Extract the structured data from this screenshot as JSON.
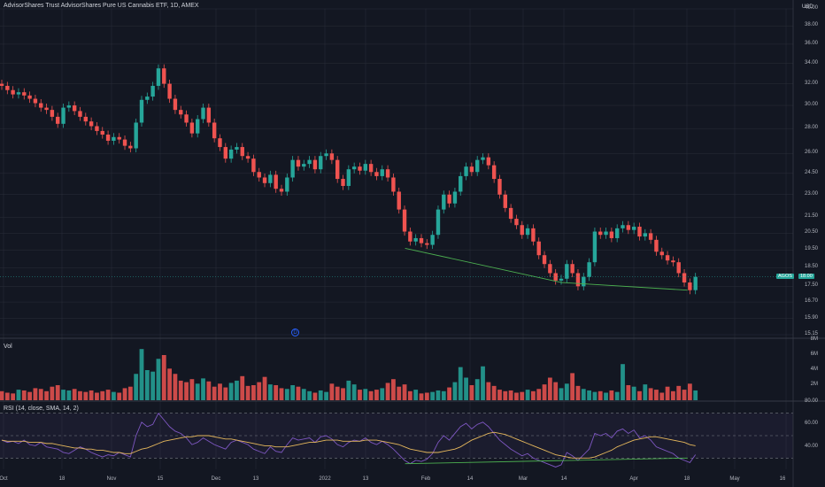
{
  "title": "AdvisorShares Trust AdvisorShares Pure US Cannabis ETF, 1D, AMEX",
  "currency": "USD",
  "volume_label": "Vol",
  "rsi_label": "RSI (14, close, SMA, 14, 2)",
  "symbol_tag": "AGOS",
  "last_price_tag": "18.00",
  "dividend_marker": "D",
  "colors": {
    "up": "#26a69a",
    "down": "#ef5350",
    "bg": "#131722",
    "grid": "#2a2e39",
    "trend": "#4caf50",
    "rsi": "#7e57c2",
    "rsi_ma": "#e6b85c"
  },
  "price_axis": [
    "40.00",
    "38.00",
    "36.00",
    "34.00",
    "32.00",
    "30.00",
    "28.00",
    "26.00",
    "24.50",
    "23.00",
    "21.50",
    "20.50",
    "19.50",
    "18.50",
    "17.50",
    "16.70",
    "15.90",
    "15.15"
  ],
  "volume_axis": [
    "8M",
    "6M",
    "4M",
    "2M"
  ],
  "rsi_axis": [
    "80.00",
    "60.00",
    "40.00"
  ],
  "x_axis": [
    "Oct",
    "18",
    "Nov",
    "15",
    "Dec",
    "13",
    "2022",
    "13",
    "Feb",
    "14",
    "Mar",
    "14",
    "Apr",
    "18",
    "May",
    "16"
  ],
  "chart_data": {
    "type": "candlestick",
    "title": "AdvisorShares Trust AdvisorShares Pure US Cannabis ETF, 1D, AMEX",
    "scale": "log",
    "ylim": [
      15.15,
      40.0
    ],
    "x_range": [
      "2021-10-01",
      "2022-05-20"
    ],
    "closes": [
      31.8,
      31.4,
      31.0,
      31.2,
      30.9,
      30.6,
      30.2,
      29.8,
      29.6,
      29.0,
      28.4,
      29.8,
      30.0,
      29.5,
      29.0,
      28.6,
      28.2,
      27.8,
      27.5,
      27.0,
      27.3,
      27.1,
      26.6,
      26.4,
      28.5,
      30.5,
      30.8,
      31.8,
      33.5,
      32.0,
      30.6,
      29.6,
      29.2,
      28.5,
      27.6,
      28.8,
      29.8,
      28.5,
      27.2,
      26.5,
      25.6,
      26.3,
      26.5,
      25.8,
      25.6,
      24.6,
      24.2,
      23.8,
      24.4,
      23.4,
      23.2,
      24.2,
      25.5,
      25.0,
      25.2,
      25.5,
      24.8,
      25.8,
      26.0,
      25.5,
      24.1,
      23.6,
      24.8,
      25.0,
      24.7,
      25.2,
      24.6,
      24.3,
      24.8,
      24.2,
      23.2,
      22.0,
      20.6,
      20.0,
      20.2,
      19.9,
      19.8,
      20.4,
      22.0,
      23.0,
      22.4,
      23.2,
      24.3,
      25.0,
      24.6,
      25.5,
      25.7,
      25.1,
      24.1,
      23.0,
      22.1,
      21.4,
      21.0,
      20.4,
      20.8,
      20.0,
      19.2,
      18.7,
      18.2,
      17.8,
      17.9,
      18.7,
      18.2,
      17.5,
      18.0,
      18.8,
      20.6,
      20.4,
      20.6,
      20.2,
      20.8,
      21.0,
      20.7,
      20.9,
      20.3,
      20.5,
      20.1,
      19.4,
      19.2,
      18.9,
      18.8,
      18.2,
      17.7,
      17.3,
      18.0
    ],
    "volume": [
      1.2,
      1.0,
      0.9,
      1.4,
      1.3,
      1.1,
      1.6,
      1.5,
      1.2,
      1.8,
      2.0,
      1.4,
      1.3,
      1.5,
      1.2,
      1.1,
      1.3,
      1.0,
      1.2,
      1.4,
      1.1,
      1.0,
      1.6,
      1.8,
      3.5,
      6.8,
      4.0,
      3.8,
      5.5,
      6.0,
      4.2,
      3.5,
      2.6,
      2.4,
      2.8,
      2.2,
      2.9,
      2.5,
      1.8,
      2.2,
      1.7,
      2.3,
      2.6,
      3.2,
      1.9,
      2.0,
      2.4,
      3.1,
      2.1,
      2.0,
      1.6,
      1.5,
      2.0,
      1.8,
      1.5,
      1.2,
      1.0,
      1.3,
      1.1,
      2.2,
      1.8,
      1.6,
      2.6,
      2.1,
      1.4,
      1.5,
      1.2,
      1.4,
      1.6,
      2.3,
      2.8,
      1.8,
      2.1,
      1.2,
      1.4,
      0.9,
      1.0,
      1.1,
      1.3,
      1.2,
      1.7,
      2.4,
      4.4,
      3.0,
      2.0,
      2.8,
      4.5,
      2.4,
      1.9,
      1.4,
      1.2,
      1.3,
      1.0,
      1.1,
      1.4,
      1.2,
      1.5,
      2.1,
      3.0,
      2.4,
      1.6,
      2.2,
      3.6,
      1.9,
      1.5,
      1.3,
      1.1,
      1.2,
      1.0,
      1.3,
      1.1,
      4.8,
      2.0,
      1.8,
      1.2,
      2.1,
      1.6,
      1.4,
      1.0,
      1.8,
      1.2,
      1.9,
      1.4,
      2.2,
      1.3
    ],
    "rsi": [
      46,
      44,
      45,
      43,
      46,
      42,
      41,
      44,
      40,
      39,
      38,
      35,
      34,
      37,
      40,
      38,
      35,
      33,
      31,
      33,
      32,
      35,
      33,
      31,
      50,
      62,
      58,
      60,
      70,
      64,
      58,
      54,
      52,
      48,
      42,
      44,
      48,
      45,
      42,
      40,
      38,
      44,
      46,
      44,
      42,
      38,
      36,
      34,
      40,
      36,
      35,
      42,
      48,
      46,
      47,
      48,
      44,
      49,
      50,
      47,
      42,
      40,
      44,
      46,
      45,
      48,
      44,
      42,
      45,
      42,
      38,
      33,
      28,
      25,
      28,
      27,
      29,
      34,
      44,
      50,
      46,
      52,
      58,
      61,
      56,
      60,
      62,
      58,
      52,
      46,
      42,
      38,
      35,
      32,
      34,
      30,
      28,
      26,
      24,
      22,
      24,
      35,
      32,
      28,
      33,
      38,
      52,
      50,
      52,
      48,
      54,
      56,
      52,
      55,
      48,
      50,
      46,
      40,
      38,
      36,
      34,
      30,
      28,
      26,
      33
    ],
    "rsi_ma": [
      46,
      45,
      45,
      45,
      45,
      44,
      44,
      44,
      43,
      43,
      42,
      41,
      40,
      39,
      39,
      38,
      38,
      37,
      37,
      36,
      35,
      35,
      34,
      34,
      36,
      38,
      39,
      41,
      43,
      45,
      46,
      47,
      48,
      49,
      49,
      50,
      50,
      50,
      49,
      48,
      47,
      47,
      46,
      45,
      44,
      43,
      42,
      41,
      41,
      40,
      40,
      40,
      41,
      42,
      43,
      44,
      44,
      45,
      46,
      46,
      46,
      45,
      45,
      45,
      45,
      46,
      46,
      46,
      45,
      44,
      43,
      42,
      40,
      38,
      37,
      36,
      35,
      35,
      35,
      36,
      37,
      38,
      40,
      43,
      46,
      48,
      50,
      52,
      53,
      52,
      51,
      49,
      47,
      45,
      43,
      41,
      39,
      37,
      35,
      33,
      32,
      31,
      30,
      30,
      30,
      30,
      31,
      33,
      35,
      37,
      40,
      42,
      44,
      46,
      47,
      48,
      49,
      49,
      48,
      47,
      46,
      45,
      44,
      42,
      41
    ],
    "trendlines": [
      {
        "pane": "price",
        "from": [
          "2022-01-27",
          19.6
        ],
        "to": [
          "2022-03-14",
          17.7
        ]
      },
      {
        "pane": "price",
        "from": [
          "2022-03-14",
          17.7
        ],
        "to": [
          "2022-04-20",
          17.3
        ]
      },
      {
        "pane": "rsi",
        "from": [
          "2022-01-27",
          25
        ],
        "to": [
          "2022-04-20",
          30
        ]
      }
    ],
    "rsi_levels": [
      70,
      50,
      30
    ],
    "rsi_ylim": [
      20,
      80
    ],
    "volume_ylim": [
      0,
      8
    ]
  }
}
